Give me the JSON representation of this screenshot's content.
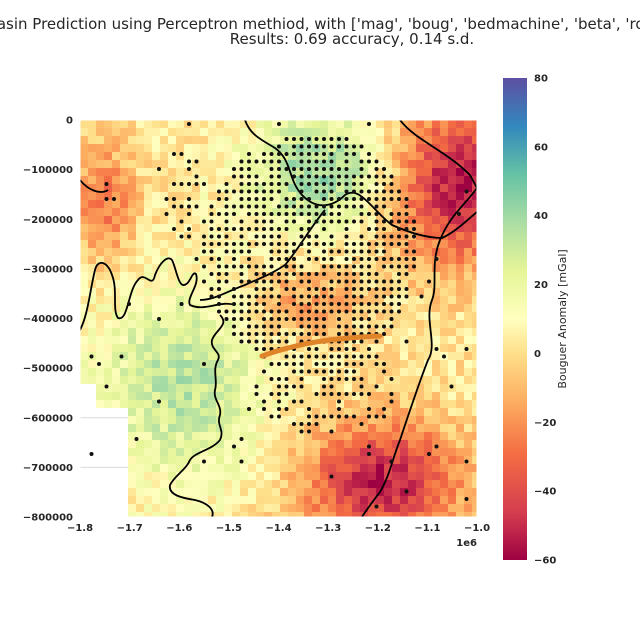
{
  "chart_data": {
    "type": "heatmap",
    "title_line1": "Basin Prediction using Perceptron methiod, with ['mag', 'boug', 'bedmachine', 'beta', 'roughness']",
    "title_line2": "Results: 0.69 accuracy, 0.14 s.d.",
    "xlim": [
      -1800000,
      -1000000
    ],
    "ylim": [
      -800000,
      0
    ],
    "x_ticks": [
      -1800000,
      -1700000,
      -1600000,
      -1500000,
      -1400000,
      -1300000,
      -1200000,
      -1100000,
      -1000000
    ],
    "x_tick_labels": [
      "−1.8",
      "−1.7",
      "−1.6",
      "−1.5",
      "−1.4",
      "−1.3",
      "−1.2",
      "−1.1",
      "−1.0"
    ],
    "x_offset_label": "1e6",
    "y_ticks": [
      0,
      -100000,
      -200000,
      -300000,
      -400000,
      -500000,
      -600000,
      -700000,
      -800000
    ],
    "y_tick_labels": [
      "0",
      "−100000",
      "−200000",
      "−300000",
      "−400000",
      "−500000",
      "−600000",
      "−700000",
      "−800000"
    ],
    "colorbar": {
      "label": "Bouguer Anomaly [mGal]",
      "range": [
        -60,
        80
      ],
      "ticks": [
        -60,
        -40,
        -20,
        0,
        20,
        40,
        60,
        80
      ],
      "tick_labels": [
        "−60",
        "−40",
        "−20",
        "0",
        "20",
        "40",
        "60",
        "80"
      ],
      "colormap": "Spectral"
    },
    "grid": true,
    "prediction_points_color": "#111111",
    "profile_line_color": "#e0842a"
  }
}
